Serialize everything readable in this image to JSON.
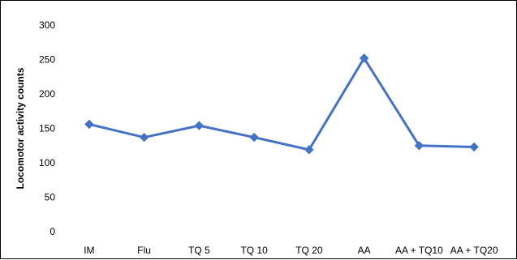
{
  "chart_data": {
    "type": "line",
    "title": "",
    "xlabel": "",
    "ylabel": "Locomotor activity counts",
    "categories": [
      "IM",
      "Flu",
      "TQ 5",
      "TQ 10",
      "TQ 20",
      "AA",
      "AA + TQ10",
      "AA + TQ20"
    ],
    "series": [
      {
        "values": [
          156,
          137,
          154,
          137,
          119,
          252,
          125,
          123
        ],
        "color": "#4472C4",
        "marker": "diamond"
      }
    ],
    "ylim": [
      0,
      300
    ],
    "yticks": [
      "0",
      "50",
      "100",
      "150",
      "200",
      "250",
      "300"
    ],
    "grid": false,
    "legend": "none"
  }
}
